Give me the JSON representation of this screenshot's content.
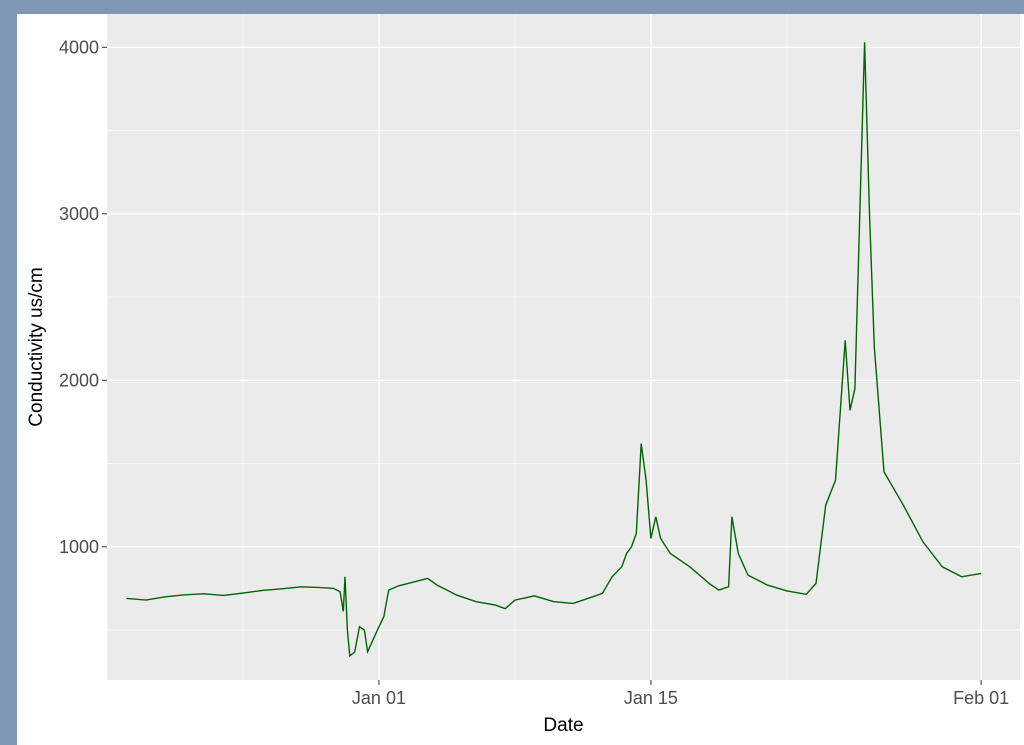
{
  "colors": {
    "panel_background": "#ebebeb",
    "grid_major": "#ffffff",
    "series_line": "#006400",
    "frame": "#7f96b4"
  },
  "chart_data": {
    "type": "line",
    "title": "",
    "xlabel": "Date",
    "ylabel": "Conductivity us/cm",
    "x_axis": {
      "scale": "date",
      "range": [
        "2023-12-18",
        "2024-02-03"
      ],
      "ticks": [
        "2024-01-01",
        "2024-01-15",
        "2024-02-01"
      ],
      "tick_labels": [
        "Jan 01",
        "Jan 15",
        "Feb 01"
      ],
      "minor_ticks": [
        "2023-12-18",
        "2023-12-25",
        "2024-01-08",
        "2024-01-22"
      ]
    },
    "y_axis": {
      "range": [
        200,
        4200
      ],
      "ticks": [
        1000,
        2000,
        3000,
        4000
      ],
      "tick_labels": [
        "1000",
        "2000",
        "3000",
        "4000"
      ],
      "minor_ticks": [
        500,
        1500,
        2500,
        3500
      ]
    },
    "grid": true,
    "legend": "none",
    "series": [
      {
        "color": "#006400",
        "points": [
          [
            "2023-12-19",
            690
          ],
          [
            "2023-12-20",
            680
          ],
          [
            "2023-12-21",
            700
          ],
          [
            "2023-12-22",
            712
          ],
          [
            "2023-12-23",
            718
          ],
          [
            "2023-12-24",
            708
          ],
          [
            "2023-12-25",
            722
          ],
          [
            "2023-12-26",
            738
          ],
          [
            "2023-12-27",
            748
          ],
          [
            "2023-12-28",
            760
          ],
          [
            "2023-12-29",
            755
          ],
          [
            "2023-12-29 16:00",
            750
          ],
          [
            "2023-12-30",
            730
          ],
          [
            "2023-12-30 04:00",
            612
          ],
          [
            "2023-12-30 06:00",
            820
          ],
          [
            "2023-12-30 09:00",
            500
          ],
          [
            "2023-12-30 12:00",
            345
          ],
          [
            "2023-12-30 18:00",
            368
          ],
          [
            "2023-12-31 00:00",
            520
          ],
          [
            "2023-12-31 06:00",
            500
          ],
          [
            "2023-12-31 10:00",
            370
          ],
          [
            "2023-12-31 16:00",
            435
          ],
          [
            "2024-01-01 00:00",
            520
          ],
          [
            "2024-01-01 06:00",
            580
          ],
          [
            "2024-01-01 12:00",
            740
          ],
          [
            "2024-01-02",
            765
          ],
          [
            "2024-01-03",
            795
          ],
          [
            "2024-01-03 12:00",
            810
          ],
          [
            "2024-01-04",
            770
          ],
          [
            "2024-01-05",
            710
          ],
          [
            "2024-01-06",
            670
          ],
          [
            "2024-01-07",
            650
          ],
          [
            "2024-01-07 12:00",
            628
          ],
          [
            "2024-01-08",
            680
          ],
          [
            "2024-01-09",
            705
          ],
          [
            "2024-01-10",
            670
          ],
          [
            "2024-01-11",
            660
          ],
          [
            "2024-01-12",
            700
          ],
          [
            "2024-01-12 12:00",
            720
          ],
          [
            "2024-01-13",
            820
          ],
          [
            "2024-01-13 12:00",
            880
          ],
          [
            "2024-01-13 18:00",
            960
          ],
          [
            "2024-01-14",
            1000
          ],
          [
            "2024-01-14 06:00",
            1080
          ],
          [
            "2024-01-14 12:00",
            1620
          ],
          [
            "2024-01-14 18:00",
            1400
          ],
          [
            "2024-01-15",
            1050
          ],
          [
            "2024-01-15 06:00",
            1180
          ],
          [
            "2024-01-15 12:00",
            1050
          ],
          [
            "2024-01-16",
            960
          ],
          [
            "2024-01-17",
            880
          ],
          [
            "2024-01-18",
            780
          ],
          [
            "2024-01-18 12:00",
            740
          ],
          [
            "2024-01-19",
            760
          ],
          [
            "2024-01-19 04:00",
            1180
          ],
          [
            "2024-01-19 12:00",
            960
          ],
          [
            "2024-01-20",
            830
          ],
          [
            "2024-01-21",
            770
          ],
          [
            "2024-01-22",
            735
          ],
          [
            "2024-01-23",
            715
          ],
          [
            "2024-01-23 12:00",
            780
          ],
          [
            "2024-01-24",
            1250
          ],
          [
            "2024-01-24 12:00",
            1400
          ],
          [
            "2024-01-25",
            2240
          ],
          [
            "2024-01-25 06:00",
            1820
          ],
          [
            "2024-01-25 12:00",
            1950
          ],
          [
            "2024-01-26",
            4030
          ],
          [
            "2024-01-26 06:00",
            3000
          ],
          [
            "2024-01-26 12:00",
            2200
          ],
          [
            "2024-01-27",
            1450
          ],
          [
            "2024-01-28",
            1250
          ],
          [
            "2024-01-29",
            1030
          ],
          [
            "2024-01-30",
            880
          ],
          [
            "2024-01-31",
            820
          ],
          [
            "2024-02-01",
            840
          ]
        ]
      }
    ]
  }
}
